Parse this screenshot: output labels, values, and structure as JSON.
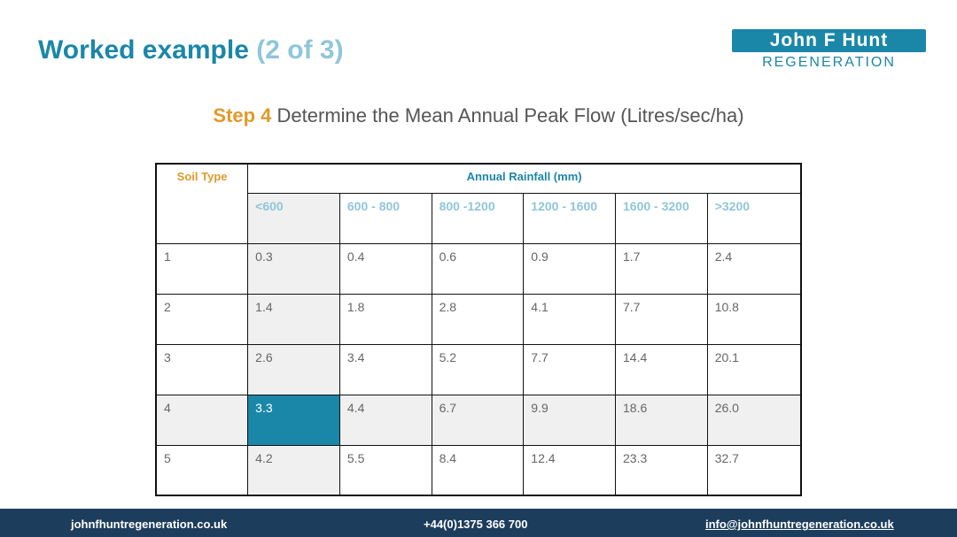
{
  "title": {
    "main": "Worked example",
    "sub": "(2 of 3)"
  },
  "logo": {
    "top": "John F Hunt",
    "bottom": "REGENERATION"
  },
  "step": {
    "label": "Step 4",
    "text": "Determine the Mean Annual Peak Flow (Litres/sec/ha)"
  },
  "table": {
    "soil_header": "Soil Type",
    "rain_header": "Annual Rainfall (mm)",
    "bands": [
      "<600",
      "600 - 800",
      "800 -1200",
      "1200 - 1600",
      "1600 - 3200",
      ">3200"
    ],
    "rows": [
      {
        "soil": "1",
        "values": [
          "0.3",
          "0.4",
          "0.6",
          "0.9",
          "1.7",
          "2.4"
        ]
      },
      {
        "soil": "2",
        "values": [
          "1.4",
          "1.8",
          "2.8",
          "4.1",
          "7.7",
          "10.8"
        ]
      },
      {
        "soil": "3",
        "values": [
          "2.6",
          "3.4",
          "5.2",
          "7.7",
          "14.4",
          "20.1"
        ]
      },
      {
        "soil": "4",
        "values": [
          "3.3",
          "4.4",
          "6.7",
          "9.9",
          "18.6",
          "26.0"
        ]
      },
      {
        "soil": "5",
        "values": [
          "4.2",
          "5.5",
          "8.4",
          "12.4",
          "23.3",
          "32.7"
        ]
      }
    ]
  },
  "footer": {
    "website": "johnfhuntregeneration.co.uk",
    "phone": "+44(0)1375 366 700",
    "email": "info@johnfhuntregeneration.co.uk"
  },
  "colors": {
    "brand_teal": "#1b87a8",
    "light_teal": "#8fc6d9",
    "step_orange": "#e09a2a",
    "footer_navy": "#1d3d5c"
  }
}
